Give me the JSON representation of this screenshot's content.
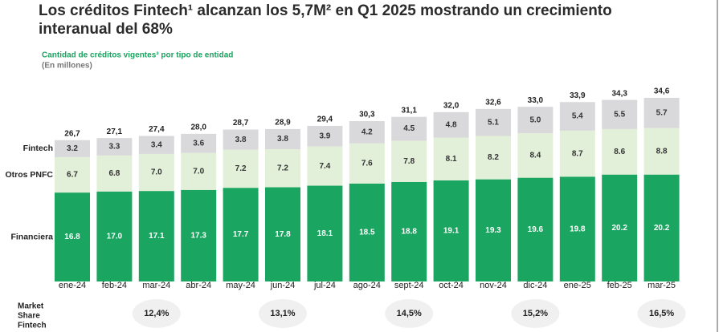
{
  "chart_data": {
    "type": "stacked-bar",
    "title": "Los créditos Fintech¹ alcanzan los 5,7M² en Q1 2025 mostrando un crecimiento interanual del 68%",
    "subtitle": "Cantidad de créditos vigentes³ por tipo de entidad",
    "unit_note": "(En millones)",
    "categories": [
      "ene-24",
      "feb-24",
      "mar-24",
      "abr-24",
      "may-24",
      "jun-24",
      "jul-24",
      "ago-24",
      "sept-24",
      "oct-24",
      "nov-24",
      "dic-24",
      "ene-25",
      "feb-25",
      "mar-25"
    ],
    "series": [
      {
        "name": "Financiera",
        "color": "#1aa560",
        "values": [
          16.8,
          17.0,
          17.1,
          17.3,
          17.7,
          17.8,
          18.1,
          18.5,
          18.8,
          19.1,
          19.3,
          19.6,
          19.8,
          20.2,
          20.2
        ],
        "value_labels": [
          "16.8",
          "17.0",
          "17.1",
          "17.3",
          "17.7",
          "17.8",
          "18.1",
          "18.5",
          "18.8",
          "19.1",
          "19.3",
          "19.6",
          "19.8",
          "20.2",
          "20.2"
        ]
      },
      {
        "name": "Otros PNFC",
        "color": "#e2efd9",
        "values": [
          6.7,
          6.8,
          7.0,
          7.0,
          7.2,
          7.2,
          7.4,
          7.6,
          7.8,
          8.1,
          8.2,
          8.4,
          8.7,
          8.6,
          8.8
        ],
        "value_labels": [
          "6.7",
          "6.8",
          "7.0",
          "7.0",
          "7.2",
          "7.2",
          "7.4",
          "7.6",
          "7.8",
          "8.1",
          "8.2",
          "8.4",
          "8.7",
          "8.6",
          "8.8"
        ]
      },
      {
        "name": "Fintech",
        "color": "#d9d9db",
        "values": [
          3.2,
          3.3,
          3.4,
          3.6,
          3.8,
          3.8,
          3.9,
          4.2,
          4.5,
          4.8,
          5.1,
          5.0,
          5.4,
          5.5,
          5.7
        ],
        "value_labels": [
          "3.2",
          "3.3",
          "3.4",
          "3.6",
          "3.8",
          "3.8",
          "3.9",
          "4.2",
          "4.5",
          "4.8",
          "5.1",
          "5.0",
          "5.4",
          "5.5",
          "5.7"
        ]
      }
    ],
    "totals": {
      "values": [
        26.7,
        27.1,
        27.4,
        28.0,
        28.7,
        28.9,
        29.4,
        30.3,
        31.1,
        32.0,
        32.6,
        33.0,
        33.9,
        34.3,
        34.6
      ],
      "value_labels": [
        "26,7",
        "27,1",
        "27,4",
        "28,0",
        "28,7",
        "28,9",
        "29,4",
        "30,3",
        "31,1",
        "32,0",
        "32,6",
        "33,0",
        "33,9",
        "34,3",
        "34,6"
      ]
    },
    "market_share": {
      "label": [
        "Market",
        "Share",
        "Fintech"
      ],
      "categories": [
        "mar-24",
        "jun-24",
        "sept-24",
        "dic-24",
        "mar-25"
      ],
      "values": [
        12.4,
        13.1,
        14.5,
        15.2,
        16.5
      ],
      "value_labels": [
        "12,4%",
        "13,1%",
        "14,5%",
        "15,2%",
        "16,5%"
      ]
    }
  }
}
